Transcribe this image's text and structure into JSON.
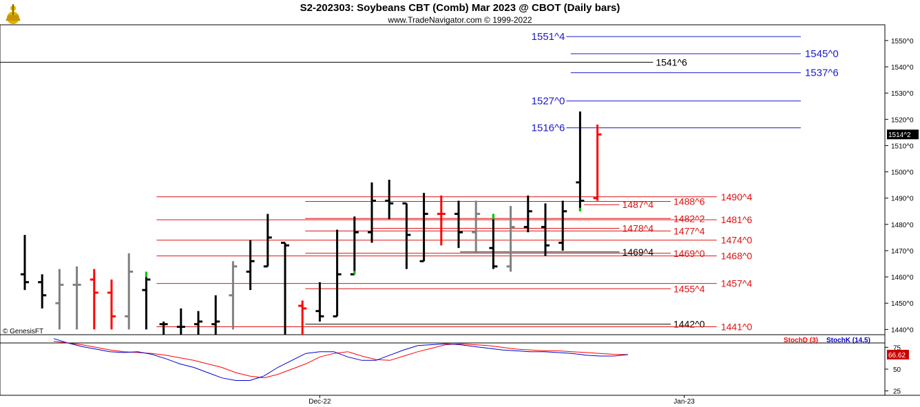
{
  "header": {
    "title": "S2-202303:  Soybeans CBT (Comb) Mar 2023 @ CBOT  (Daily bars)",
    "subtitle": "www.TradeNavigator.com © 1999-2022",
    "watermark": "© GenesisFT"
  },
  "colors": {
    "up_bar": "#000000",
    "down_bar": "#ff0000",
    "neutral_bar": "#808080",
    "green_tick": "#00cc00",
    "blue_level": "#1a1acc",
    "red_level": "#dd1111",
    "black_level": "#000000",
    "stoch_d": "#ff0000",
    "stoch_k": "#0000cc",
    "price_tag_bg": "#000000",
    "stoch_tag_bg": "#cc0000"
  },
  "chart_data": [
    {
      "type": "ohlc",
      "name": "price",
      "ylim": [
        1438,
        1556
      ],
      "y_ticks": [
        "1550^0",
        "1540^0",
        "1530^0",
        "1520^0",
        "1510^0",
        "1500^0",
        "1490^0",
        "1480^0",
        "1470^0",
        "1460^0",
        "1450^0",
        "1440^0"
      ],
      "y_tick_values": [
        1550,
        1540,
        1530,
        1520,
        1510,
        1500,
        1490,
        1480,
        1470,
        1460,
        1450,
        1440
      ],
      "x_labels": [
        {
          "label": "Dec-22",
          "index": 17
        },
        {
          "label": "Jan-23",
          "index": 38
        }
      ],
      "last_price_label": "1514^2",
      "last_price_value": 1514.25,
      "bars": [
        {
          "h": 1476,
          "l": 1455,
          "o": 1461,
          "c": 1458,
          "color": "black"
        },
        {
          "h": 1461,
          "l": 1448,
          "o": 1458,
          "c": 1453,
          "color": "black"
        },
        {
          "h": 1463,
          "l": 1440,
          "o": 1450,
          "c": 1457,
          "color": "gray"
        },
        {
          "h": 1464,
          "l": 1440,
          "o": 1457,
          "c": 1457,
          "color": "gray"
        },
        {
          "h": 1463,
          "l": 1440,
          "o": 1459,
          "c": 1454,
          "color": "red"
        },
        {
          "h": 1459,
          "l": 1440,
          "o": 1454,
          "c": 1445,
          "color": "red"
        },
        {
          "h": 1469,
          "l": 1440,
          "o": 1445,
          "c": 1462,
          "color": "gray"
        },
        {
          "h": 1462,
          "l": 1440,
          "o": 1455,
          "c": 1459,
          "color": "black",
          "green_top": true
        },
        {
          "h": 1443,
          "l": 1438,
          "o": 1442,
          "c": 1442,
          "color": "black"
        },
        {
          "h": 1448,
          "l": 1438,
          "o": 1441,
          "c": 1441,
          "color": "black"
        },
        {
          "h": 1447,
          "l": 1438,
          "o": 1442,
          "c": 1443,
          "color": "black"
        },
        {
          "h": 1453,
          "l": 1438,
          "o": 1442,
          "c": 1443,
          "color": "black"
        },
        {
          "h": 1466,
          "l": 1440,
          "o": 1453,
          "c": 1464,
          "color": "gray"
        },
        {
          "h": 1474,
          "l": 1455,
          "o": 1462,
          "c": 1466,
          "color": "black"
        },
        {
          "h": 1484,
          "l": 1464,
          "o": 1464,
          "c": 1475,
          "color": "black"
        },
        {
          "h": 1473,
          "l": 1438,
          "o": 1473,
          "c": 1472,
          "color": "black"
        },
        {
          "h": 1451,
          "l": 1438,
          "o": 1449,
          "c": 1448,
          "color": "red"
        },
        {
          "h": 1458,
          "l": 1443,
          "o": 1447,
          "c": 1445,
          "color": "black"
        },
        {
          "h": 1478,
          "l": 1445,
          "o": 1445,
          "c": 1461,
          "color": "black"
        },
        {
          "h": 1483,
          "l": 1461,
          "o": 1461,
          "c": 1477,
          "color": "black",
          "green_low": true
        },
        {
          "h": 1496,
          "l": 1473,
          "o": 1477,
          "c": 1489,
          "color": "black"
        },
        {
          "h": 1497,
          "l": 1482,
          "o": 1489,
          "c": 1488,
          "color": "black"
        },
        {
          "h": 1488,
          "l": 1463,
          "o": 1488,
          "c": 1476,
          "color": "black"
        },
        {
          "h": 1492,
          "l": 1466,
          "o": 1466,
          "c": 1484,
          "color": "black"
        },
        {
          "h": 1491,
          "l": 1472,
          "o": 1484,
          "c": 1484,
          "color": "red"
        },
        {
          "h": 1489,
          "l": 1471,
          "o": 1484,
          "c": 1477,
          "color": "black"
        },
        {
          "h": 1489,
          "l": 1469,
          "o": 1477,
          "c": 1484,
          "color": "gray"
        },
        {
          "h": 1484,
          "l": 1463,
          "o": 1471,
          "c": 1464,
          "color": "black",
          "green_top": true
        },
        {
          "h": 1487,
          "l": 1462,
          "o": 1464,
          "c": 1479,
          "color": "gray"
        },
        {
          "h": 1491,
          "l": 1477,
          "o": 1479,
          "c": 1485,
          "color": "black"
        },
        {
          "h": 1488,
          "l": 1468,
          "o": 1479,
          "c": 1472,
          "color": "black"
        },
        {
          "h": 1489,
          "l": 1470,
          "o": 1473,
          "c": 1485,
          "color": "black"
        },
        {
          "h": 1523,
          "l": 1485,
          "o": 1496,
          "c": 1489,
          "color": "black",
          "green_low": true
        },
        {
          "h": 1518,
          "l": 1489,
          "o": 1490,
          "c": 1514.25,
          "color": "red"
        }
      ],
      "levels": [
        {
          "value": 1551.5,
          "label": "1551^4",
          "color": "blue",
          "x_from": 0.64,
          "x_to": 0.905,
          "label_pos": "left"
        },
        {
          "value": 1545.0,
          "label": "1545^0",
          "color": "blue",
          "x_from": 0.645,
          "x_to": 0.905,
          "label_pos": "right"
        },
        {
          "value": 1541.75,
          "label": "1541^6",
          "color": "black",
          "x_from": 0.0,
          "x_to": 0.738,
          "label_pos": "right-inside"
        },
        {
          "value": 1537.75,
          "label": "1537^6",
          "color": "blue",
          "x_from": 0.645,
          "x_to": 0.905,
          "label_pos": "right"
        },
        {
          "value": 1527.0,
          "label": "1527^0",
          "color": "blue",
          "x_from": 0.64,
          "x_to": 0.905,
          "label_pos": "left"
        },
        {
          "value": 1516.75,
          "label": "1516^6",
          "color": "blue",
          "x_from": 0.64,
          "x_to": 0.905,
          "label_pos": "left"
        },
        {
          "value": 1490.5,
          "label": "1490^4",
          "color": "red",
          "x_from": 0.177,
          "x_to": 0.81,
          "label_pos": "right"
        },
        {
          "value": 1488.75,
          "label": "1488^6",
          "color": "red",
          "x_from": 0.345,
          "x_to": 0.758,
          "label_pos": "right-inside"
        },
        {
          "value": 1487.5,
          "label": "1487^4",
          "color": "red",
          "x_from": 0.66,
          "x_to": 0.7,
          "label_pos": "right-inside"
        },
        {
          "value": 1482.25,
          "label": "1482^2",
          "color": "red",
          "x_from": 0.345,
          "x_to": 0.758,
          "label_pos": "right-inside"
        },
        {
          "value": 1481.75,
          "label": "1481^6",
          "color": "red",
          "x_from": 0.177,
          "x_to": 0.81,
          "label_pos": "right"
        },
        {
          "value": 1478.5,
          "label": "1478^4",
          "color": "red",
          "x_from": 0.42,
          "x_to": 0.7,
          "label_pos": "right-inside"
        },
        {
          "value": 1477.5,
          "label": "1477^4",
          "color": "red",
          "x_from": 0.345,
          "x_to": 0.758,
          "label_pos": "right-inside"
        },
        {
          "value": 1474.0,
          "label": "1474^0",
          "color": "red",
          "x_from": 0.177,
          "x_to": 0.81,
          "label_pos": "right"
        },
        {
          "value": 1469.5,
          "label": "1469^4",
          "color": "black",
          "x_from": 0.52,
          "x_to": 0.7,
          "label_pos": "right-inside"
        },
        {
          "value": 1469.0,
          "label": "1469^0",
          "color": "red",
          "x_from": 0.345,
          "x_to": 0.758,
          "label_pos": "right-inside"
        },
        {
          "value": 1468.0,
          "label": "1468^0",
          "color": "red",
          "x_from": 0.177,
          "x_to": 0.81,
          "label_pos": "right"
        },
        {
          "value": 1457.5,
          "label": "1457^4",
          "color": "red",
          "x_from": 0.177,
          "x_to": 0.81,
          "label_pos": "right"
        },
        {
          "value": 1455.5,
          "label": "1455^4",
          "color": "red",
          "x_from": 0.345,
          "x_to": 0.758,
          "label_pos": "right-inside"
        },
        {
          "value": 1442.0,
          "label": "1442^0",
          "color": "black",
          "x_from": 0.345,
          "x_to": 0.758,
          "label_pos": "right-inside"
        },
        {
          "value": 1441.0,
          "label": "1441^0",
          "color": "red",
          "x_from": 0.177,
          "x_to": 0.81,
          "label_pos": "right"
        }
      ]
    },
    {
      "type": "line",
      "name": "stochastics",
      "ylim": [
        20,
        80
      ],
      "y_ticks": [
        "75",
        "50",
        "25"
      ],
      "y_tick_values": [
        75,
        50,
        25
      ],
      "legend": [
        "StochD (3)",
        "StochK (14,5)"
      ],
      "last_value_label": "66.62",
      "series": [
        {
          "name": "StochD (3)",
          "color": "red",
          "values": [
            82,
            80,
            78,
            75,
            72,
            70,
            69,
            68,
            66,
            63,
            60,
            56,
            52,
            46,
            42,
            40,
            44,
            50,
            56,
            64,
            68,
            70,
            65,
            61,
            60,
            65,
            70,
            74,
            78,
            79,
            78,
            77,
            75,
            73,
            72,
            71,
            71,
            70,
            69,
            68,
            67,
            66.62
          ]
        },
        {
          "name": "StochK (14,5)",
          "color": "blue",
          "values": [
            85,
            80,
            76,
            73,
            70,
            69,
            70,
            67,
            62,
            56,
            52,
            46,
            40,
            37,
            37,
            42,
            52,
            60,
            68,
            70,
            70,
            64,
            60,
            60,
            66,
            72,
            77,
            78,
            79,
            78,
            76,
            74,
            72,
            71,
            70,
            70,
            69,
            68,
            66,
            65,
            65,
            66.62
          ]
        }
      ]
    }
  ]
}
